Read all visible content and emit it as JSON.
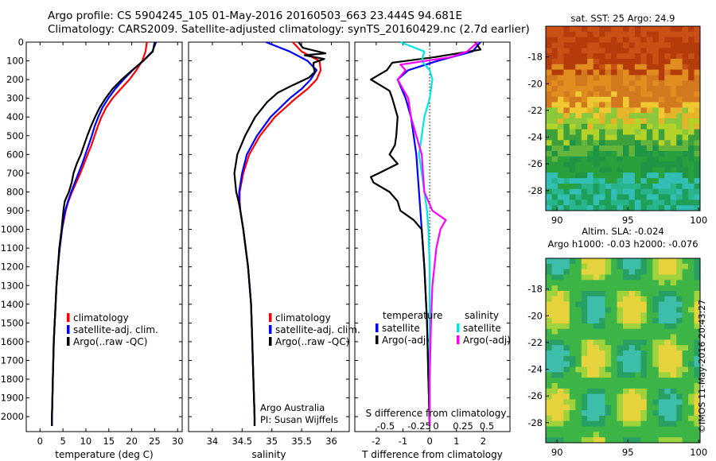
{
  "title_line1": "Argo profile: CS 5904245_105 01-May-2016 20160503_663 23.444S 94.681E",
  "title_line2": "Climatology: CARS2009. Satellite-adjusted climatology: synTS_20160429.nc (2.7d earlier)",
  "stamp": "©IMOS 11-May-2016 20:43:27",
  "colors": {
    "climatology": "#ff0000",
    "satellite": "#0000ff",
    "argo": "#000000",
    "sat_salt": "#00e5e5",
    "argo_salt": "#ff00ff"
  },
  "depth_ticks": [
    "0",
    "100",
    "200",
    "300",
    "400",
    "500",
    "600",
    "700",
    "800",
    "900",
    "1000",
    "1100",
    "1200",
    "1300",
    "1400",
    "1500",
    "1600",
    "1700",
    "1800",
    "1900",
    "2000"
  ],
  "chart_data": [
    {
      "type": "line",
      "xlabel": "temperature (deg C)",
      "xlim": [
        -3,
        31
      ],
      "ylim": [
        0,
        2080
      ],
      "xticks": [
        0,
        5,
        10,
        15,
        20,
        25,
        30
      ],
      "legend": [
        "climatology",
        "satellite-adj. clim.",
        "Argo(..raw -QC)"
      ],
      "series": [
        {
          "name": "climatology",
          "color": "climatology",
          "depth": [
            0,
            50,
            100,
            150,
            200,
            250,
            300,
            350,
            400,
            450,
            500,
            550,
            600,
            650,
            700,
            750,
            800,
            850,
            900,
            950,
            1000,
            1100,
            1200,
            1300,
            1400,
            1500,
            1600,
            1700,
            1800,
            1900,
            2000,
            2050
          ],
          "values": [
            23.3,
            23.0,
            22.3,
            21.0,
            19.5,
            17.6,
            15.8,
            14.4,
            13.4,
            12.6,
            11.9,
            11.2,
            10.4,
            9.6,
            8.8,
            7.9,
            7.0,
            6.2,
            5.6,
            5.2,
            4.8,
            4.3,
            3.9,
            3.6,
            3.4,
            3.2,
            3.0,
            2.9,
            2.8,
            2.7,
            2.6,
            2.6
          ]
        },
        {
          "name": "satellite-adj. clim.",
          "color": "satellite",
          "depth": [
            0,
            50,
            100,
            150,
            200,
            250,
            300,
            350,
            400,
            450,
            500,
            550,
            600,
            650,
            700,
            750,
            800,
            850,
            900,
            950,
            1000,
            1100,
            1200,
            1300,
            1400,
            1500,
            1600,
            1700,
            1800,
            1900,
            2000,
            2050
          ],
          "values": [
            25.3,
            24.5,
            22.5,
            20.2,
            18.2,
            16.4,
            14.9,
            13.6,
            12.7,
            11.9,
            11.3,
            10.6,
            9.9,
            9.2,
            8.4,
            7.6,
            6.8,
            6.1,
            5.5,
            5.1,
            4.8,
            4.3,
            3.9,
            3.6,
            3.4,
            3.2,
            3.0,
            2.9,
            2.8,
            2.7,
            2.6,
            2.6
          ]
        },
        {
          "name": "Argo(..raw -QC)",
          "color": "argo",
          "depth": [
            0,
            50,
            100,
            150,
            200,
            250,
            300,
            350,
            400,
            450,
            500,
            550,
            600,
            650,
            700,
            750,
            800,
            850,
            900,
            950,
            1000,
            1100,
            1200,
            1300,
            1400,
            1500,
            1600,
            1700,
            1800,
            1900,
            2000,
            2050
          ],
          "values": [
            25.0,
            24.6,
            22.5,
            20.1,
            17.8,
            15.8,
            14.3,
            13.0,
            12.0,
            11.1,
            10.3,
            9.6,
            8.9,
            8.0,
            7.3,
            6.9,
            6.3,
            5.4,
            5.1,
            4.9,
            4.7,
            4.2,
            3.9,
            3.6,
            3.4,
            3.2,
            3.0,
            2.9,
            2.8,
            2.7,
            2.6,
            2.6
          ]
        }
      ]
    },
    {
      "type": "line",
      "xlabel": "salinity",
      "xlim": [
        33.6,
        36.3
      ],
      "ylim": [
        0,
        2080
      ],
      "xticks": [
        34,
        34.5,
        35,
        35.5,
        36
      ],
      "legend": [
        "climatology",
        "satellite-adj. clim.",
        "Argo(..raw -QC)"
      ],
      "annotation": [
        "Argo Australia",
        "PI: Susan Wijffels"
      ],
      "series": [
        {
          "name": "climatology",
          "color": "climatology",
          "depth": [
            0,
            50,
            100,
            150,
            200,
            250,
            300,
            400,
            500,
            600,
            700,
            800,
            850,
            900,
            1000,
            1200,
            1400,
            1600,
            1800,
            2000,
            2050
          ],
          "values": [
            35.35,
            35.5,
            35.8,
            35.82,
            35.75,
            35.6,
            35.4,
            35.05,
            34.8,
            34.62,
            34.52,
            34.46,
            34.46,
            34.47,
            34.52,
            34.6,
            34.65,
            34.67,
            34.69,
            34.71,
            34.71
          ]
        },
        {
          "name": "satellite-adj. clim.",
          "color": "satellite",
          "depth": [
            0,
            50,
            100,
            150,
            200,
            250,
            300,
            400,
            500,
            600,
            700,
            800,
            850,
            900,
            1000,
            1200,
            1400,
            1600,
            1800,
            2000,
            2050
          ],
          "values": [
            34.9,
            35.3,
            35.6,
            35.75,
            35.65,
            35.5,
            35.3,
            34.98,
            34.75,
            34.58,
            34.5,
            34.45,
            34.45,
            34.47,
            34.52,
            34.6,
            34.65,
            34.67,
            34.69,
            34.71,
            34.71
          ]
        },
        {
          "name": "Argo(..raw -QC)",
          "color": "argo",
          "depth": [
            0,
            30,
            60,
            70,
            90,
            110,
            130,
            160,
            190,
            230,
            270,
            320,
            400,
            500,
            600,
            700,
            800,
            850,
            900,
            1000,
            1200,
            1400,
            1600,
            1800,
            2000,
            2050
          ],
          "values": [
            35.45,
            35.52,
            35.9,
            35.55,
            35.88,
            35.7,
            35.7,
            35.72,
            35.62,
            35.35,
            35.1,
            34.92,
            34.72,
            34.55,
            34.42,
            34.37,
            34.4,
            34.44,
            34.47,
            34.52,
            34.6,
            34.65,
            34.67,
            34.69,
            34.71,
            34.71
          ]
        }
      ]
    },
    {
      "type": "line",
      "xlabel": "T difference from climatology",
      "top_axis_label": "S difference from climatology",
      "xlim": [
        -2.8,
        3.0
      ],
      "ylim": [
        0,
        2080
      ],
      "xticks": [
        -2,
        -1,
        0,
        1,
        2
      ],
      "top_ticks": [
        "-0.5",
        "-0.25",
        "0",
        "0.25",
        "0.5"
      ],
      "legend_temperature": {
        "heading": "temperature",
        "items": [
          "satellite",
          "Argo(-adj)"
        ]
      },
      "legend_salinity": {
        "heading": "salinity",
        "items": [
          "satellite",
          "Argo(-adj)"
        ]
      },
      "series": [
        {
          "name": "temperature satellite",
          "color": "satellite",
          "depth": [
            0,
            50,
            100,
            150,
            200,
            300,
            400,
            500,
            600,
            700,
            800,
            900,
            1000,
            1200,
            1500,
            1800,
            2050
          ],
          "values": [
            1.9,
            1.6,
            0.3,
            -0.8,
            -1.2,
            -0.9,
            -0.7,
            -0.6,
            -0.5,
            -0.45,
            -0.4,
            -0.35,
            -0.3,
            -0.2,
            -0.1,
            -0.05,
            0.0
          ]
        },
        {
          "name": "temperature Argo(-adj)",
          "color": "argo",
          "depth": [
            0,
            40,
            80,
            110,
            150,
            200,
            260,
            300,
            400,
            500,
            550,
            600,
            650,
            700,
            720,
            750,
            800,
            850,
            900,
            950,
            1000,
            1200,
            1500,
            1800,
            2050
          ],
          "values": [
            1.7,
            1.9,
            0.2,
            -1.4,
            -1.6,
            -2.2,
            -1.5,
            -1.4,
            -1.2,
            -1.25,
            -1.3,
            -1.5,
            -1.2,
            -1.9,
            -2.2,
            -2.1,
            -1.5,
            -1.2,
            -1.1,
            -0.6,
            -0.3,
            -0.2,
            -0.1,
            -0.05,
            0.0
          ]
        },
        {
          "name": "salinity satellite",
          "color": "sat_salt",
          "depth": [
            0,
            50,
            100,
            150,
            200,
            300,
            400,
            500,
            600,
            700,
            800,
            900,
            1000,
            1200,
            1500,
            1800,
            2050
          ],
          "values": [
            -1.1,
            -0.2,
            -0.3,
            0.0,
            0.1,
            0.0,
            -0.2,
            -0.3,
            -0.4,
            -0.3,
            -0.2,
            -0.1,
            -0.05,
            0.0,
            0.0,
            0.0,
            0.0
          ]
        },
        {
          "name": "salinity Argo(-adj)",
          "color": "argo_salt",
          "depth": [
            0,
            50,
            80,
            120,
            150,
            200,
            300,
            400,
            500,
            600,
            700,
            800,
            900,
            950,
            1000,
            1100,
            1300,
            1500,
            1800,
            2050
          ],
          "values": [
            1.8,
            1.4,
            0.8,
            -1.1,
            -0.9,
            -1.2,
            -0.8,
            -0.7,
            -0.5,
            -0.3,
            -0.25,
            -0.2,
            0.1,
            0.6,
            0.4,
            0.25,
            0.1,
            0.05,
            0.0,
            0.0
          ]
        }
      ]
    },
    {
      "type": "heatmap",
      "title": "sat. SST: 25 Argo: 24.9",
      "xlim": [
        89.2,
        100.1
      ],
      "ylim": [
        -29.5,
        -15.7
      ],
      "xticks": [
        90,
        95,
        100
      ],
      "yticks": [
        -18,
        -20,
        -22,
        -24,
        -26,
        -28
      ]
    },
    {
      "type": "heatmap",
      "title_line1": "Altim. SLA: -0.024",
      "title_line2": "Argo h1000: -0.03 h2000: -0.076",
      "xlim": [
        89.2,
        100.1
      ],
      "ylim": [
        -29.5,
        -15.7
      ],
      "xticks": [
        90,
        95,
        100
      ],
      "yticks": [
        -18,
        -20,
        -22,
        -24,
        -26,
        -28
      ]
    }
  ]
}
